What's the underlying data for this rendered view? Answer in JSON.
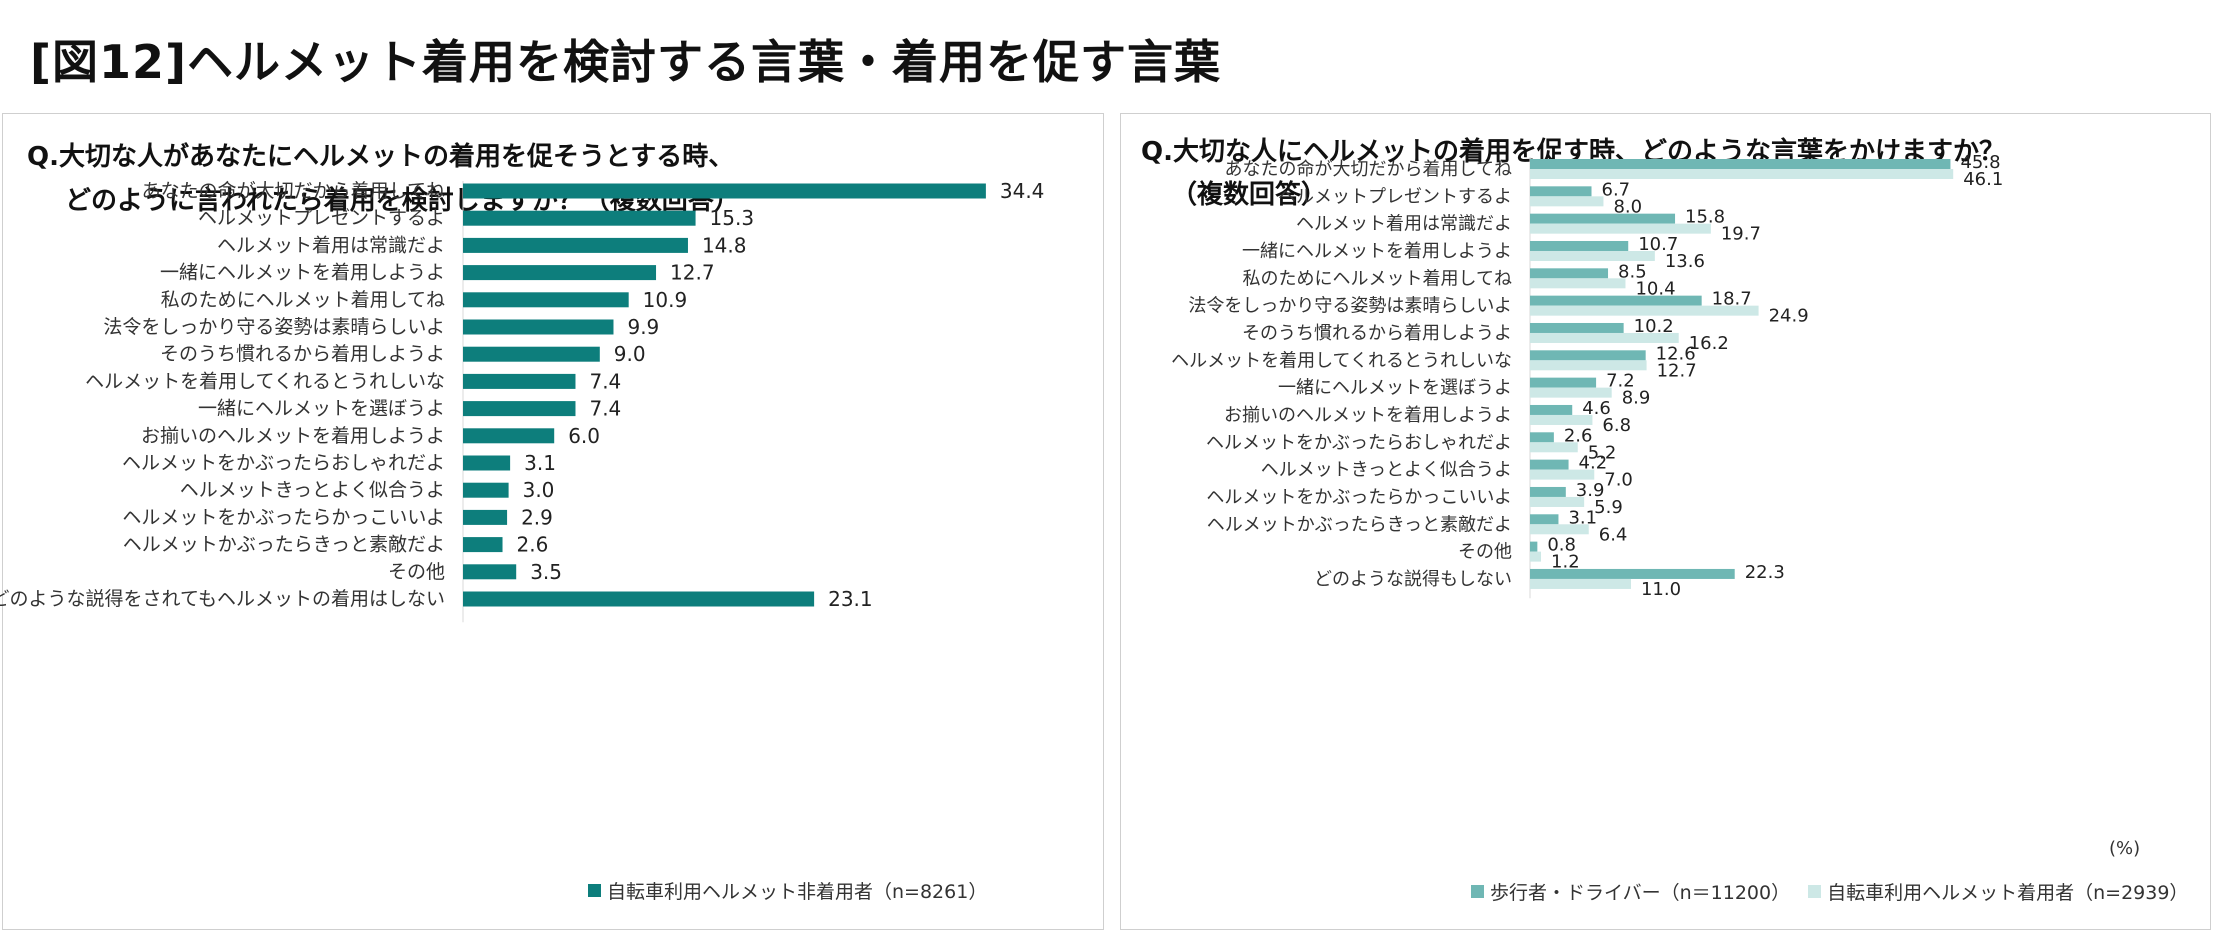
{
  "page_title": "[図12]ヘルメット着用を検討する言葉・着用を促す言葉",
  "left": {
    "question_line1": "Q.大切な人があなたにヘルメットの着用を促そうとする時、",
    "question_line2": "どのように言われたら着用を検討しますか？（複数回答）",
    "legend_label": "自転車利用ヘルメット非着用者（n=8261）"
  },
  "right": {
    "question_line1": "Q.大切な人にヘルメットの着用を促す時、どのような言葉をかけますか？",
    "question_line2": "（複数回答）",
    "unit": "(%)",
    "legend_label_1": "歩行者・ドライバー（n＝11200）",
    "legend_label_2": "自転車利用ヘルメット着用者（n=2939）"
  },
  "colors": {
    "dark_teal": "#0d7e7c",
    "mid_teal": "#6fb7b4",
    "light_teal": "#cde8e6"
  },
  "chart_data": [
    {
      "type": "bar",
      "orientation": "horizontal",
      "categories": [
        "あなたの命が大切だから着用してね",
        "ヘルメットプレゼントするよ",
        "ヘルメット着用は常識だよ",
        "一緒にヘルメットを着用しようよ",
        "私のためにヘルメット着用してね",
        "法令をしっかり守る姿勢は素晴らしいよ",
        "そのうち慣れるから着用しようよ",
        "ヘルメットを着用してくれるとうれしいな",
        "一緒にヘルメットを選ぼうよ",
        "お揃いのヘルメットを着用しようよ",
        "ヘルメットをかぶったらおしゃれだよ",
        "ヘルメットきっとよく似合うよ",
        "ヘルメットをかぶったらかっこいいよ",
        "ヘルメットかぶったらきっと素敵だよ",
        "その他",
        "どのような説得をされてもヘルメットの着用はしない"
      ],
      "series": [
        {
          "name": "自転車利用ヘルメット非着用者（n=8261）",
          "values": [
            34.4,
            15.3,
            14.8,
            12.7,
            10.9,
            9.9,
            9.0,
            7.4,
            7.4,
            6.0,
            3.1,
            3.0,
            2.9,
            2.6,
            3.5,
            23.1
          ]
        }
      ],
      "legend": "bottom"
    },
    {
      "type": "bar",
      "orientation": "horizontal",
      "categories": [
        "あなたの命が大切だから着用してね",
        "ヘルメットプレゼントするよ",
        "ヘルメット着用は常識だよ",
        "一緒にヘルメットを着用しようよ",
        "私のためにヘルメット着用してね",
        "法令をしっかり守る姿勢は素晴らしいよ",
        "そのうち慣れるから着用しようよ",
        "ヘルメットを着用してくれるとうれしいな",
        "一緒にヘルメットを選ぼうよ",
        "お揃いのヘルメットを着用しようよ",
        "ヘルメットをかぶったらおしゃれだよ",
        "ヘルメットきっとよく似合うよ",
        "ヘルメットをかぶったらかっこいいよ",
        "ヘルメットかぶったらきっと素敵だよ",
        "その他",
        "どのような説得もしない"
      ],
      "series": [
        {
          "name": "歩行者・ドライバー（n＝11200）",
          "values": [
            45.8,
            6.7,
            15.8,
            10.7,
            8.5,
            18.7,
            10.2,
            12.6,
            7.2,
            4.6,
            2.6,
            4.2,
            3.9,
            3.1,
            0.8,
            22.3
          ]
        },
        {
          "name": "自転車利用ヘルメット着用者（n=2939）",
          "values": [
            46.1,
            8.0,
            19.7,
            13.6,
            10.4,
            24.9,
            16.2,
            12.7,
            8.9,
            6.8,
            5.2,
            7.0,
            5.9,
            6.4,
            1.2,
            11.0
          ]
        }
      ],
      "legend": "bottom"
    }
  ]
}
